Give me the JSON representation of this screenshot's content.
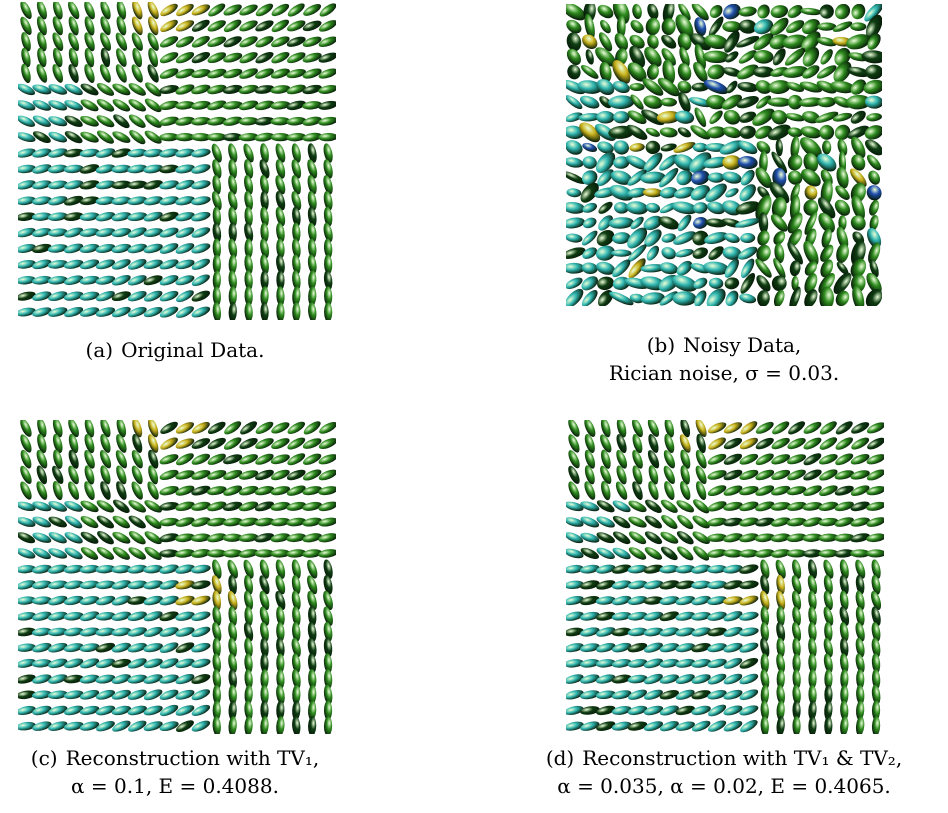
{
  "panels": [
    {
      "id": "a",
      "label": "(a)",
      "line1": "Original Data.",
      "line2": ""
    },
    {
      "id": "b",
      "label": "(b)",
      "line1": "Noisy Data,",
      "line2": "Rician noise, σ = 0.03."
    },
    {
      "id": "c",
      "label": "(c)",
      "line1": "Reconstruction with TV₁,",
      "line2": "α = 0.1, E = 0.4088."
    },
    {
      "id": "d",
      "label": "(d)",
      "line1": "Reconstruction with TV₁ & TV₂,",
      "line2": "α = 0.035, α = 0.02, E = 0.4065."
    }
  ],
  "colors": {
    "green": "#2e8b1e",
    "dark_green": "#0f3d12",
    "cyan": "#2fb5b0",
    "yellow": "#c9b21c",
    "blue": "#1f4fae"
  }
}
